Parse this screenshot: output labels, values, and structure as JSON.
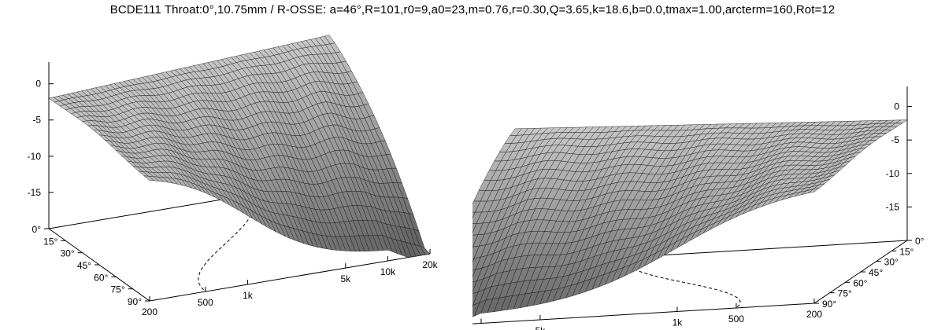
{
  "title": "BCDE111 Throat:0°,10.75mm / R-OSSE: a=46°,R=101,r0=9,a0=23,m=0.76,r=0.30,Q=3.65,k=18.6,b=0.0,tmax=1.00,arcterm=160,Rot=12",
  "colors": {
    "surface_light": "#f2f2f2",
    "surface_dark": "#4a4a4a",
    "grid_line": "#1a1a1a",
    "axis": "#000000"
  },
  "chart_data": [
    {
      "type": "surface",
      "title": "",
      "z_axis": {
        "range": [
          -20,
          3
        ],
        "ticks": [
          "0",
          "-5",
          "-10",
          "-15"
        ],
        "tick_values": [
          0,
          -5,
          -10,
          -15
        ]
      },
      "angle_axis": {
        "ticks": [
          "0°",
          "15°",
          "30°",
          "45°",
          "60°",
          "75°",
          "90°"
        ],
        "tick_values": [
          0,
          15,
          30,
          45,
          60,
          75,
          90
        ]
      },
      "freq_axis": {
        "scale": "log",
        "range": [
          200,
          20000
        ],
        "ticks": [
          "200",
          "500",
          "1k",
          "5k",
          "10k",
          "20k"
        ],
        "tick_values": [
          200,
          500,
          1000,
          5000,
          10000,
          20000
        ]
      },
      "polar_angles_deg": [
        0,
        5,
        10,
        15,
        20,
        25,
        30,
        35,
        40,
        45,
        50,
        55,
        60,
        65,
        70,
        75,
        80,
        85,
        90
      ],
      "response_db_at_freqs": {
        "freqs_hz": [
          200,
          500,
          1000,
          2000,
          5000,
          10000,
          20000
        ],
        "angle_0": [
          0,
          0,
          0,
          0,
          0,
          1,
          2
        ],
        "angle_45": [
          0,
          -1,
          -3,
          -4,
          -5,
          -7,
          -10
        ],
        "angle_90": [
          0,
          -3,
          -8,
          -12,
          -16,
          -18,
          -19
        ]
      }
    },
    {
      "type": "surface",
      "title": "",
      "z_axis": {
        "range": [
          -20,
          3
        ],
        "ticks": [
          "0",
          "-5",
          "-10",
          "-15"
        ],
        "tick_values": [
          0,
          -5,
          -10,
          -15
        ]
      },
      "angle_axis": {
        "ticks": [
          "0°",
          "15°",
          "30°",
          "45°",
          "60°",
          "75°",
          "90°"
        ],
        "tick_values": [
          0,
          15,
          30,
          45,
          60,
          75,
          90
        ]
      },
      "freq_axis": {
        "scale": "log",
        "range": [
          200,
          20000
        ],
        "ticks": [
          "200",
          "500",
          "1k",
          "5k",
          "10k",
          "20k"
        ],
        "tick_values": [
          200,
          500,
          1000,
          5000,
          10000,
          20000
        ]
      }
    }
  ]
}
